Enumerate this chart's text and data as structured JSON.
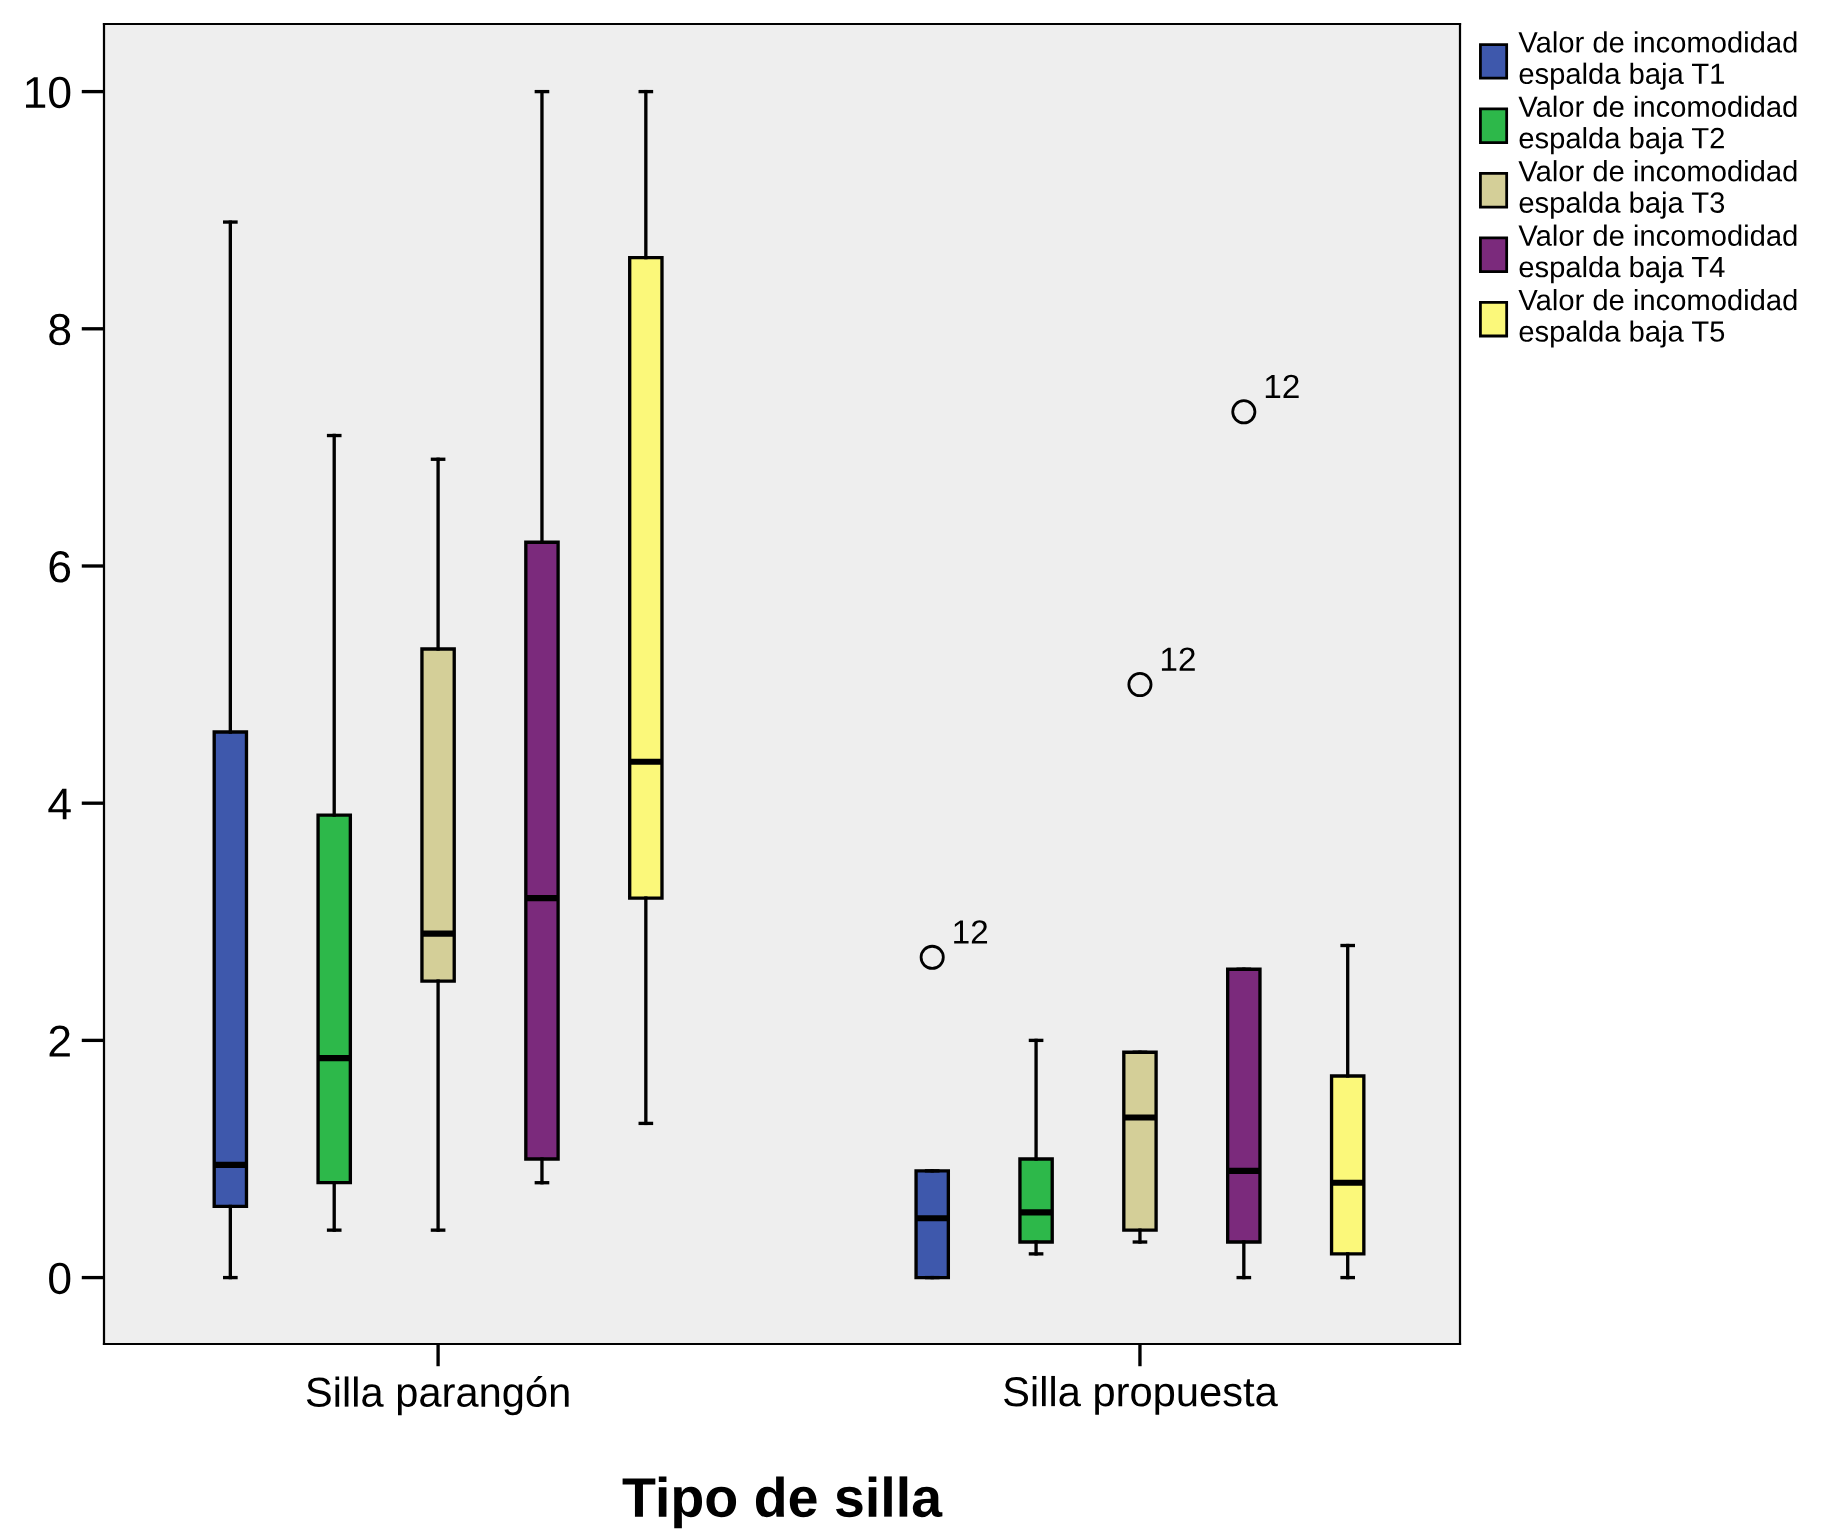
{
  "chart_data": {
    "type": "box",
    "xlabel": "Tipo de silla",
    "categories": [
      "Silla parangón",
      "Silla propuesta"
    ],
    "ylim": [
      -0.56,
      10.57
    ],
    "yticks": [
      0,
      2,
      4,
      6,
      8,
      10
    ],
    "grid": false,
    "legend": "right",
    "marker": "circle",
    "series": [
      {
        "name": "Valor de incomodidad espalda baja T1",
        "color": "#3e58ac",
        "boxes": [
          {
            "low": 0,
            "q1": 0.6,
            "median": 0.95,
            "q3": 4.6,
            "high": 8.9
          },
          {
            "low": 0,
            "q1": 0,
            "median": 0.5,
            "q3": 0.9,
            "high": 0.9,
            "outliers": [
              2.7
            ]
          }
        ]
      },
      {
        "name": "Valor de incomodidad espalda baja T2",
        "color": "#2db84a",
        "boxes": [
          {
            "low": 0.4,
            "q1": 0.8,
            "median": 1.85,
            "q3": 3.9,
            "high": 7.1
          },
          {
            "low": 0.2,
            "q1": 0.3,
            "median": 0.55,
            "q3": 1.0,
            "high": 2.0
          }
        ]
      },
      {
        "name": "Valor de incomodidad espalda baja T3",
        "color": "#d4cf98",
        "boxes": [
          {
            "low": 0.4,
            "q1": 2.5,
            "median": 2.9,
            "q3": 5.3,
            "high": 6.9
          },
          {
            "low": 0.3,
            "q1": 0.4,
            "median": 1.35,
            "q3": 1.9,
            "high": 1.9,
            "outliers": [
              5.0
            ]
          }
        ]
      },
      {
        "name": "Valor de incomodidad espalda baja T4",
        "color": "#7b2a7c",
        "boxes": [
          {
            "low": 0.8,
            "q1": 1.0,
            "median": 3.2,
            "q3": 6.2,
            "high": 10
          },
          {
            "low": 0,
            "q1": 0.3,
            "median": 0.9,
            "q3": 2.6,
            "high": 2.6,
            "outliers": [
              7.3
            ]
          }
        ]
      },
      {
        "name": "Valor de incomodidad espalda baja T5",
        "color": "#fbf87a",
        "boxes": [
          {
            "low": 1.3,
            "q1": 3.2,
            "median": 4.35,
            "q3": 8.6,
            "high": 10
          },
          {
            "low": 0,
            "q1": 0.2,
            "median": 0.8,
            "q3": 1.7,
            "high": 2.8
          }
        ]
      }
    ],
    "annotations": [
      "12",
      "12",
      "12"
    ]
  }
}
